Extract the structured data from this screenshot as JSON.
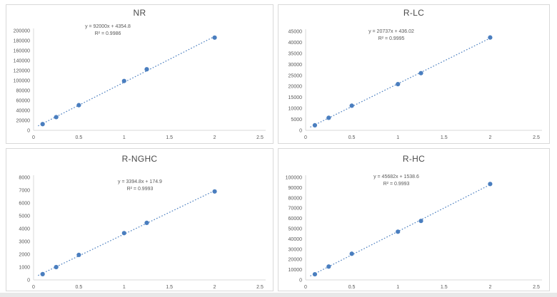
{
  "colors": {
    "marker": "#4a7ebf",
    "trendline": "#4a7ebf",
    "axis_line": "#d9d9d9",
    "tick_text": "#595959",
    "title_text": "#4a4a4a",
    "cell_border": "#d9d9d9",
    "bottom_strip": "#e8e8e8"
  },
  "chart_data": [
    {
      "id": "NR",
      "type": "scatter",
      "title": "NR",
      "equation": "y = 92000x + 4354.8",
      "r_squared": "R² = 0.9986",
      "trend_slope": 92000,
      "trend_intercept": 4354.8,
      "x": [
        0.1,
        0.25,
        0.5,
        1,
        1.25,
        2
      ],
      "y": [
        12500,
        26500,
        50500,
        99000,
        122500,
        186000
      ],
      "xlim": [
        0,
        2.5
      ],
      "ylim": [
        0,
        200000
      ],
      "ytick_step": 20000,
      "xticks": [
        0,
        0.5,
        1,
        1.5,
        2,
        2.5
      ],
      "grid": false,
      "legend": false
    },
    {
      "id": "R-LC",
      "type": "scatter",
      "title": "R-LC",
      "equation": "y = 20737x + 436.02",
      "r_squared": "R² = 0.9995",
      "trend_slope": 20737,
      "trend_intercept": 436.02,
      "x": [
        0.1,
        0.25,
        0.5,
        1,
        1.25,
        2
      ],
      "y": [
        2300,
        5700,
        11200,
        21000,
        26000,
        42200
      ],
      "xlim": [
        0,
        2.5
      ],
      "ylim": [
        0,
        45000
      ],
      "ytick_step": 5000,
      "xticks": [
        0,
        0.5,
        1,
        1.5,
        2,
        2.5
      ],
      "grid": false,
      "legend": false
    },
    {
      "id": "R-NGHC",
      "type": "scatter",
      "title": "R-NGHC",
      "equation": "y = 3394.8x + 174.9",
      "r_squared": "R² = 0.9993",
      "trend_slope": 3394.8,
      "trend_intercept": 174.9,
      "x": [
        0.1,
        0.25,
        0.5,
        1,
        1.25,
        2
      ],
      "y": [
        450,
        1000,
        1950,
        3650,
        4450,
        6900
      ],
      "xlim": [
        0,
        2.5
      ],
      "ylim": [
        0,
        8000
      ],
      "ytick_step": 1000,
      "xticks": [
        0,
        0.5,
        1,
        1.5,
        2,
        2.5
      ],
      "grid": false,
      "legend": false
    },
    {
      "id": "R-HC",
      "type": "scatter",
      "title": "R-HC",
      "equation": "y = 45682x + 1538.6",
      "r_squared": "R² = 0.9993",
      "trend_slope": 45682,
      "trend_intercept": 1538.6,
      "x": [
        0.1,
        0.25,
        0.5,
        1,
        1.25,
        2
      ],
      "y": [
        5500,
        13000,
        25500,
        47000,
        57500,
        93500
      ],
      "xlim": [
        0,
        2.5
      ],
      "ylim": [
        0,
        100000
      ],
      "ytick_step": 10000,
      "xticks": [
        0,
        0.5,
        1,
        1.5,
        2,
        2.5
      ],
      "grid": false,
      "legend": false
    }
  ]
}
